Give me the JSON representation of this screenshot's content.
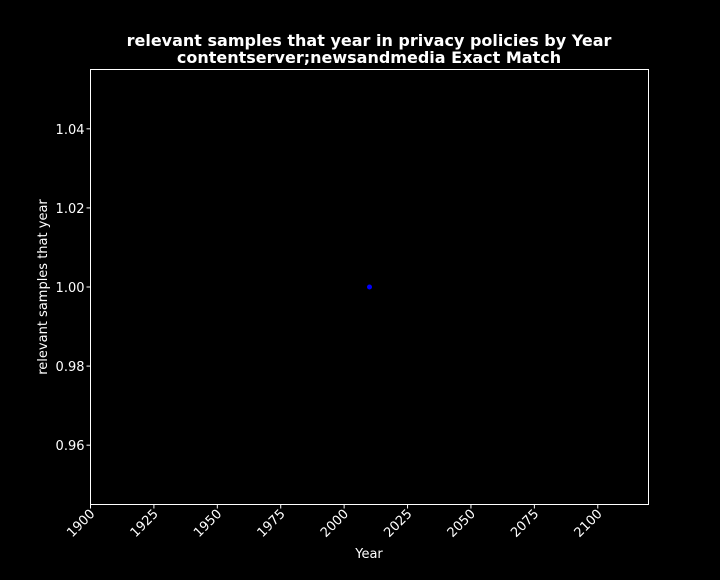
{
  "chart_data": {
    "type": "scatter",
    "title_line1": "relevant samples that year in privacy policies by Year",
    "title_line2": "contentserver;newsandmedia Exact Match",
    "xlabel": "Year",
    "ylabel": "relevant samples that year",
    "xlim": [
      1900,
      2120
    ],
    "ylim": [
      0.945,
      1.055
    ],
    "xticks": [
      1900,
      1925,
      1950,
      1975,
      2000,
      2025,
      2050,
      2075,
      2100
    ],
    "yticks": [
      0.96,
      0.98,
      1.0,
      1.02,
      1.04
    ],
    "ytick_labels": [
      "0.96",
      "0.98",
      "1.00",
      "1.02",
      "1.04"
    ],
    "points": [
      {
        "x": 2010,
        "y": 1.0
      }
    ],
    "point_color": "#0000ff",
    "background_color": "#000000",
    "foreground_color": "#ffffff",
    "grid": false,
    "legend": "none"
  }
}
